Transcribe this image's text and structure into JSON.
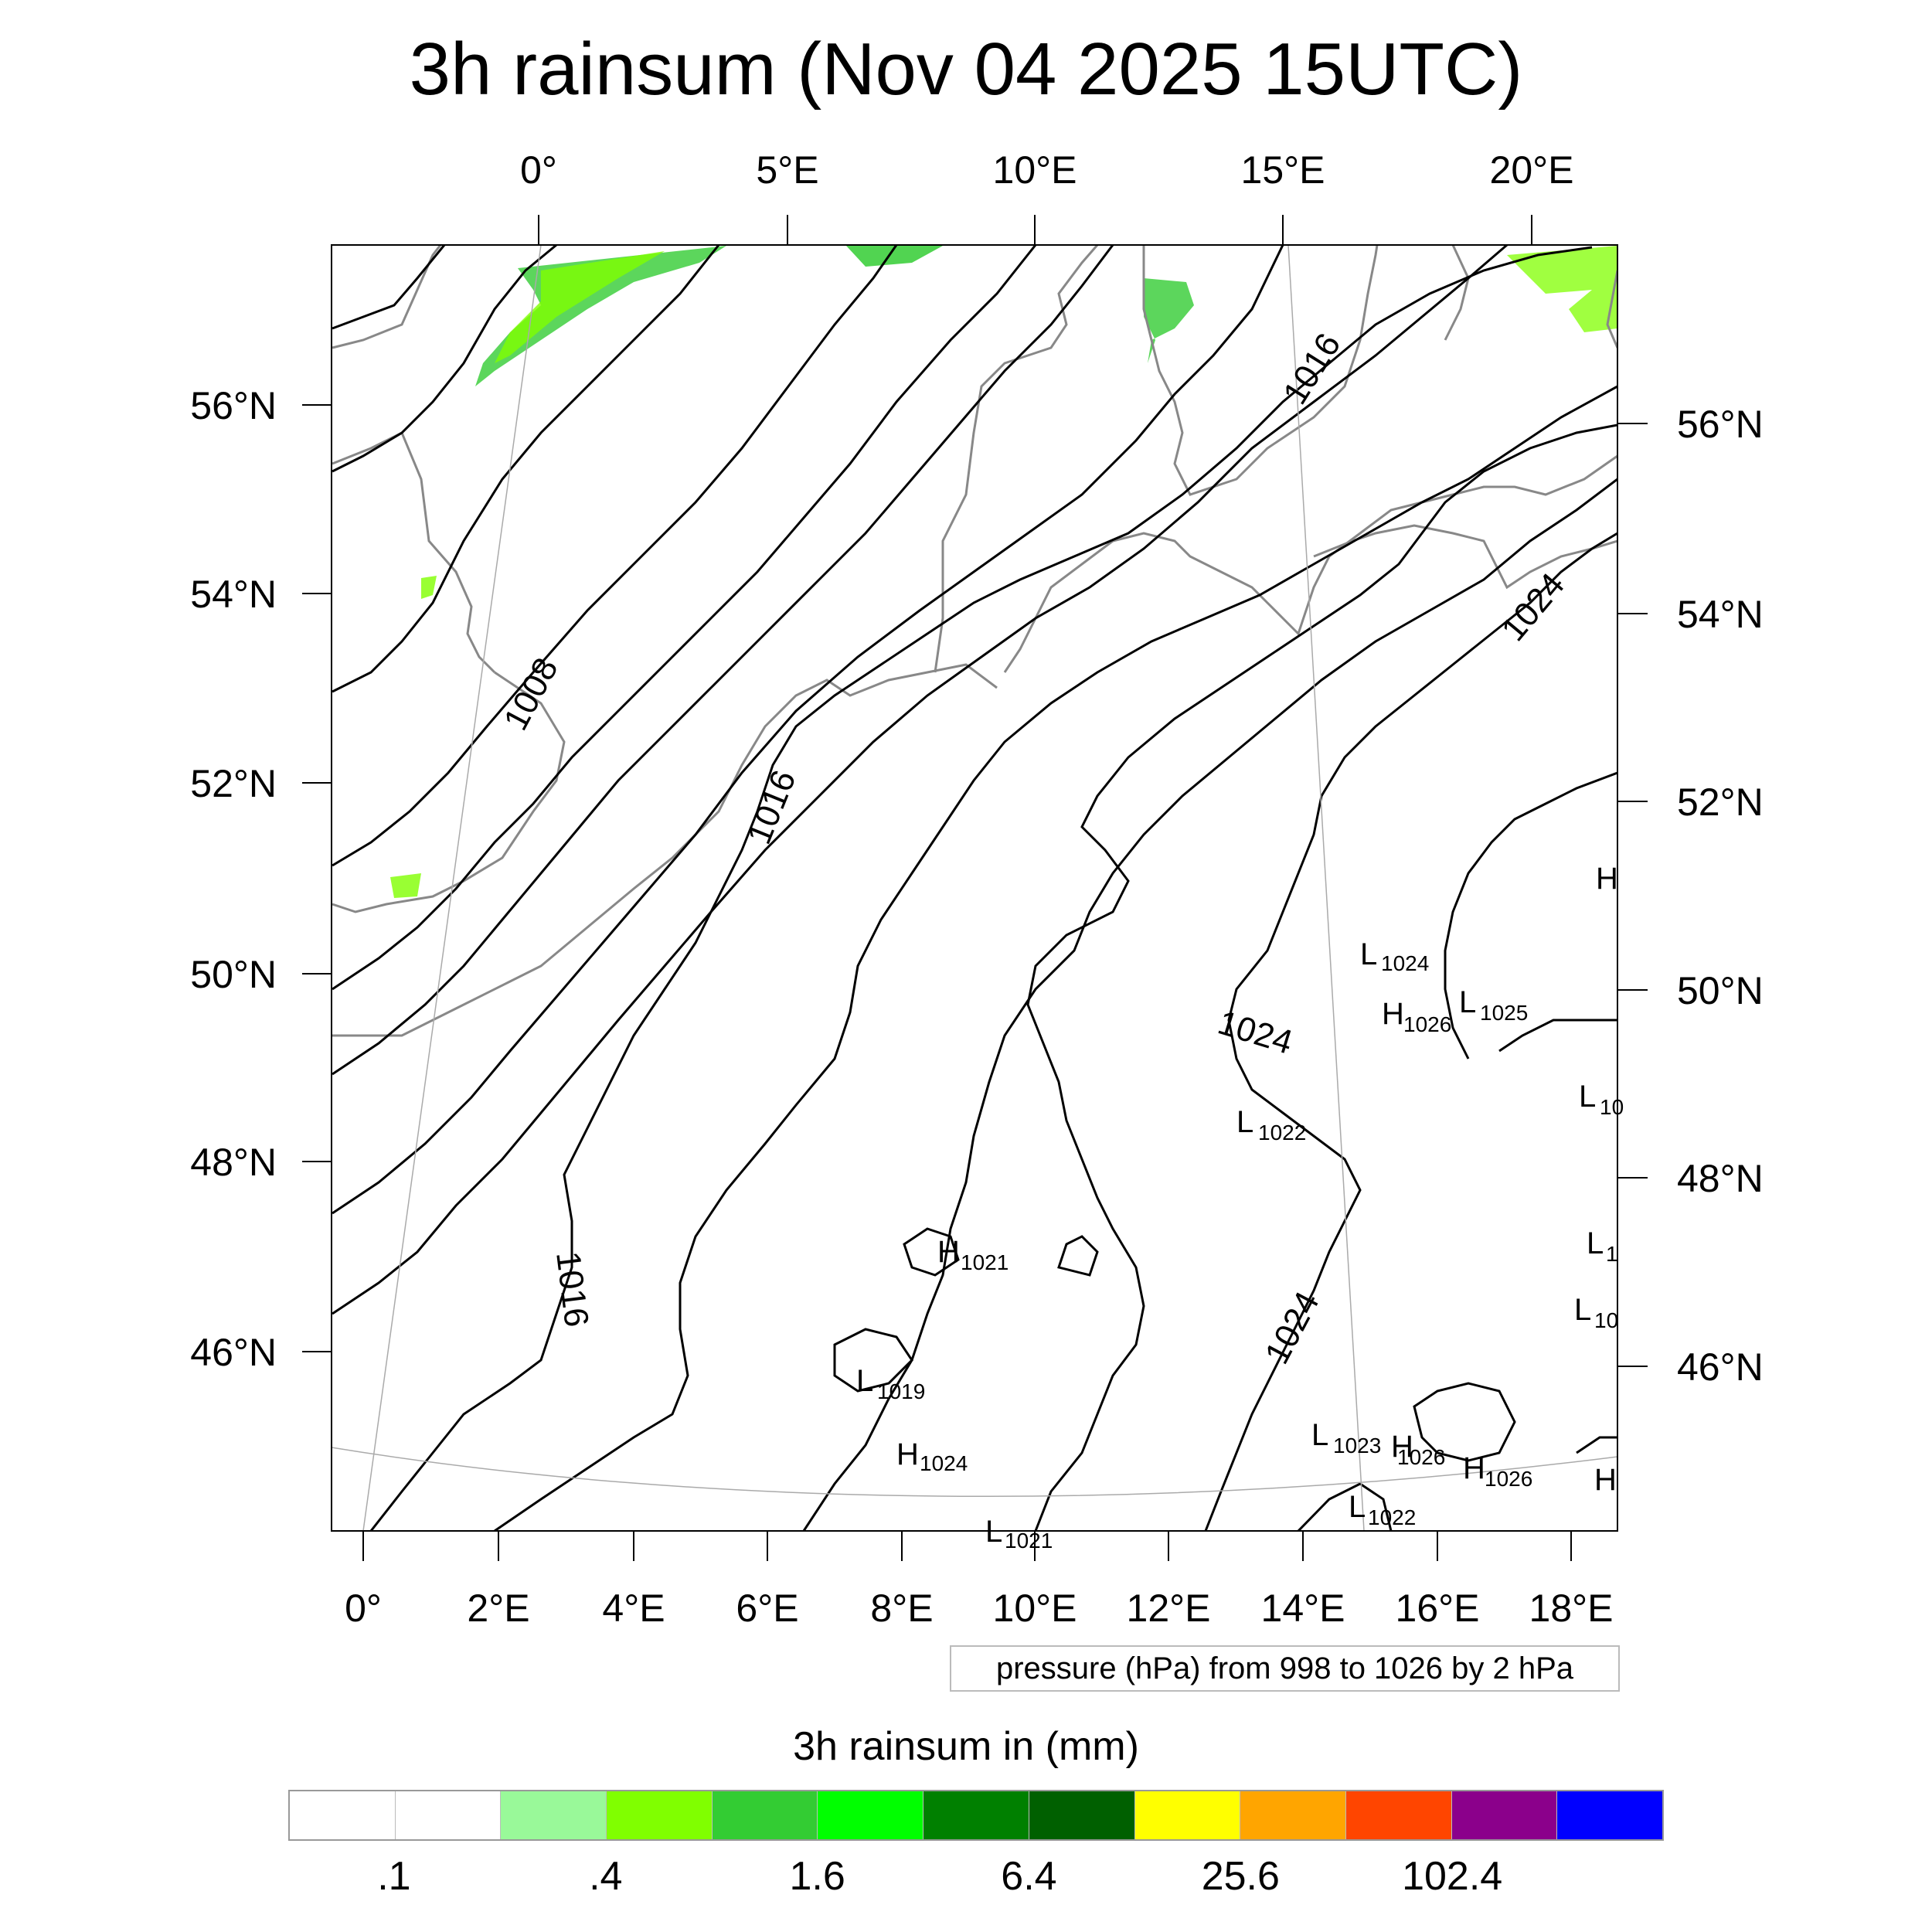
{
  "title": "3h rainsum (Nov 04 2025 15UTC)",
  "top_lon_labels": [
    "0°",
    "5°E",
    "10°E",
    "15°E",
    "20°E"
  ],
  "bottom_lon_labels": [
    "0°",
    "2°E",
    "4°E",
    "6°E",
    "8°E",
    "10°E",
    "12°E",
    "14°E",
    "16°E",
    "18°E"
  ],
  "left_lat_labels": [
    "56°N",
    "54°N",
    "52°N",
    "50°N",
    "48°N",
    "46°N"
  ],
  "right_lat_labels": [
    "56°N",
    "54°N",
    "52°N",
    "50°N",
    "48°N",
    "46°N"
  ],
  "isobar_labels": [
    "1008",
    "1016",
    "1016",
    "1016",
    "1024",
    "1024",
    "1024"
  ],
  "pressure_centers": [
    {
      "type": "L",
      "value": "1024"
    },
    {
      "type": "H",
      "value": "1026"
    },
    {
      "type": "L",
      "value": "1025"
    },
    {
      "type": "L",
      "value": "1022"
    },
    {
      "type": "H",
      "value": "1021"
    },
    {
      "type": "L",
      "value": "1019"
    },
    {
      "type": "H",
      "value": "1024"
    },
    {
      "type": "L",
      "value": "1023"
    },
    {
      "type": "H",
      "value": "1026"
    },
    {
      "type": "H",
      "value": "1026"
    },
    {
      "type": "L",
      "value": "1022"
    },
    {
      "type": "L",
      "value": "1021"
    },
    {
      "type": "H",
      "value": ""
    },
    {
      "type": "L",
      "value": "10"
    },
    {
      "type": "L",
      "value": "1"
    },
    {
      "type": "L",
      "value": "10"
    },
    {
      "type": "H",
      "value": ""
    }
  ],
  "pressure_info": "pressure (hPa) from 998 to 1026 by 2 hPa",
  "colorbar": {
    "title": "3h rainsum in (mm)",
    "colors": [
      "#ffffff",
      "#ffffff",
      "#99f999",
      "#80ff00",
      "#33cc33",
      "#00ff00",
      "#008000",
      "#006000",
      "#ffff00",
      "#ffa500",
      "#ff4500",
      "#8b008b",
      "#0000ff"
    ],
    "tick_labels": [
      ".1",
      ".4",
      "1.6",
      "6.4",
      "25.6",
      "102.4"
    ]
  },
  "rain_color": "#33cc33"
}
